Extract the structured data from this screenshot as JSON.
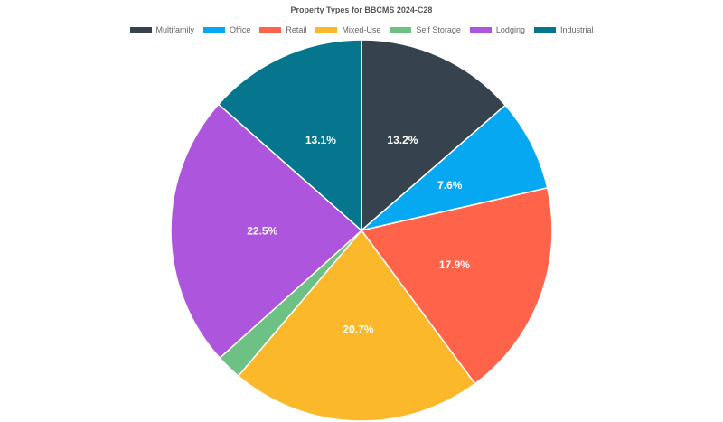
{
  "chart_data": {
    "type": "pie",
    "title": "Property Types for BBCMS 2024-C28",
    "legend_position": "top",
    "slices": [
      {
        "name": "Multifamily",
        "value": 13.2,
        "label": "13.2%",
        "color": "#36434f"
      },
      {
        "name": "Office",
        "value": 7.6,
        "label": "7.6%",
        "color": "#07a8f2"
      },
      {
        "name": "Retail",
        "value": 17.9,
        "label": "17.9%",
        "color": "#ff634a"
      },
      {
        "name": "Mixed-Use",
        "value": 20.7,
        "label": "20.7%",
        "color": "#fbb82a"
      },
      {
        "name": "Self Storage",
        "value": 2.1,
        "label": "",
        "color": "#6ec185"
      },
      {
        "name": "Lodging",
        "value": 22.5,
        "label": "22.5%",
        "color": "#ad55dc"
      },
      {
        "name": "Industrial",
        "value": 13.1,
        "label": "13.1%",
        "color": "#06768f"
      }
    ]
  }
}
